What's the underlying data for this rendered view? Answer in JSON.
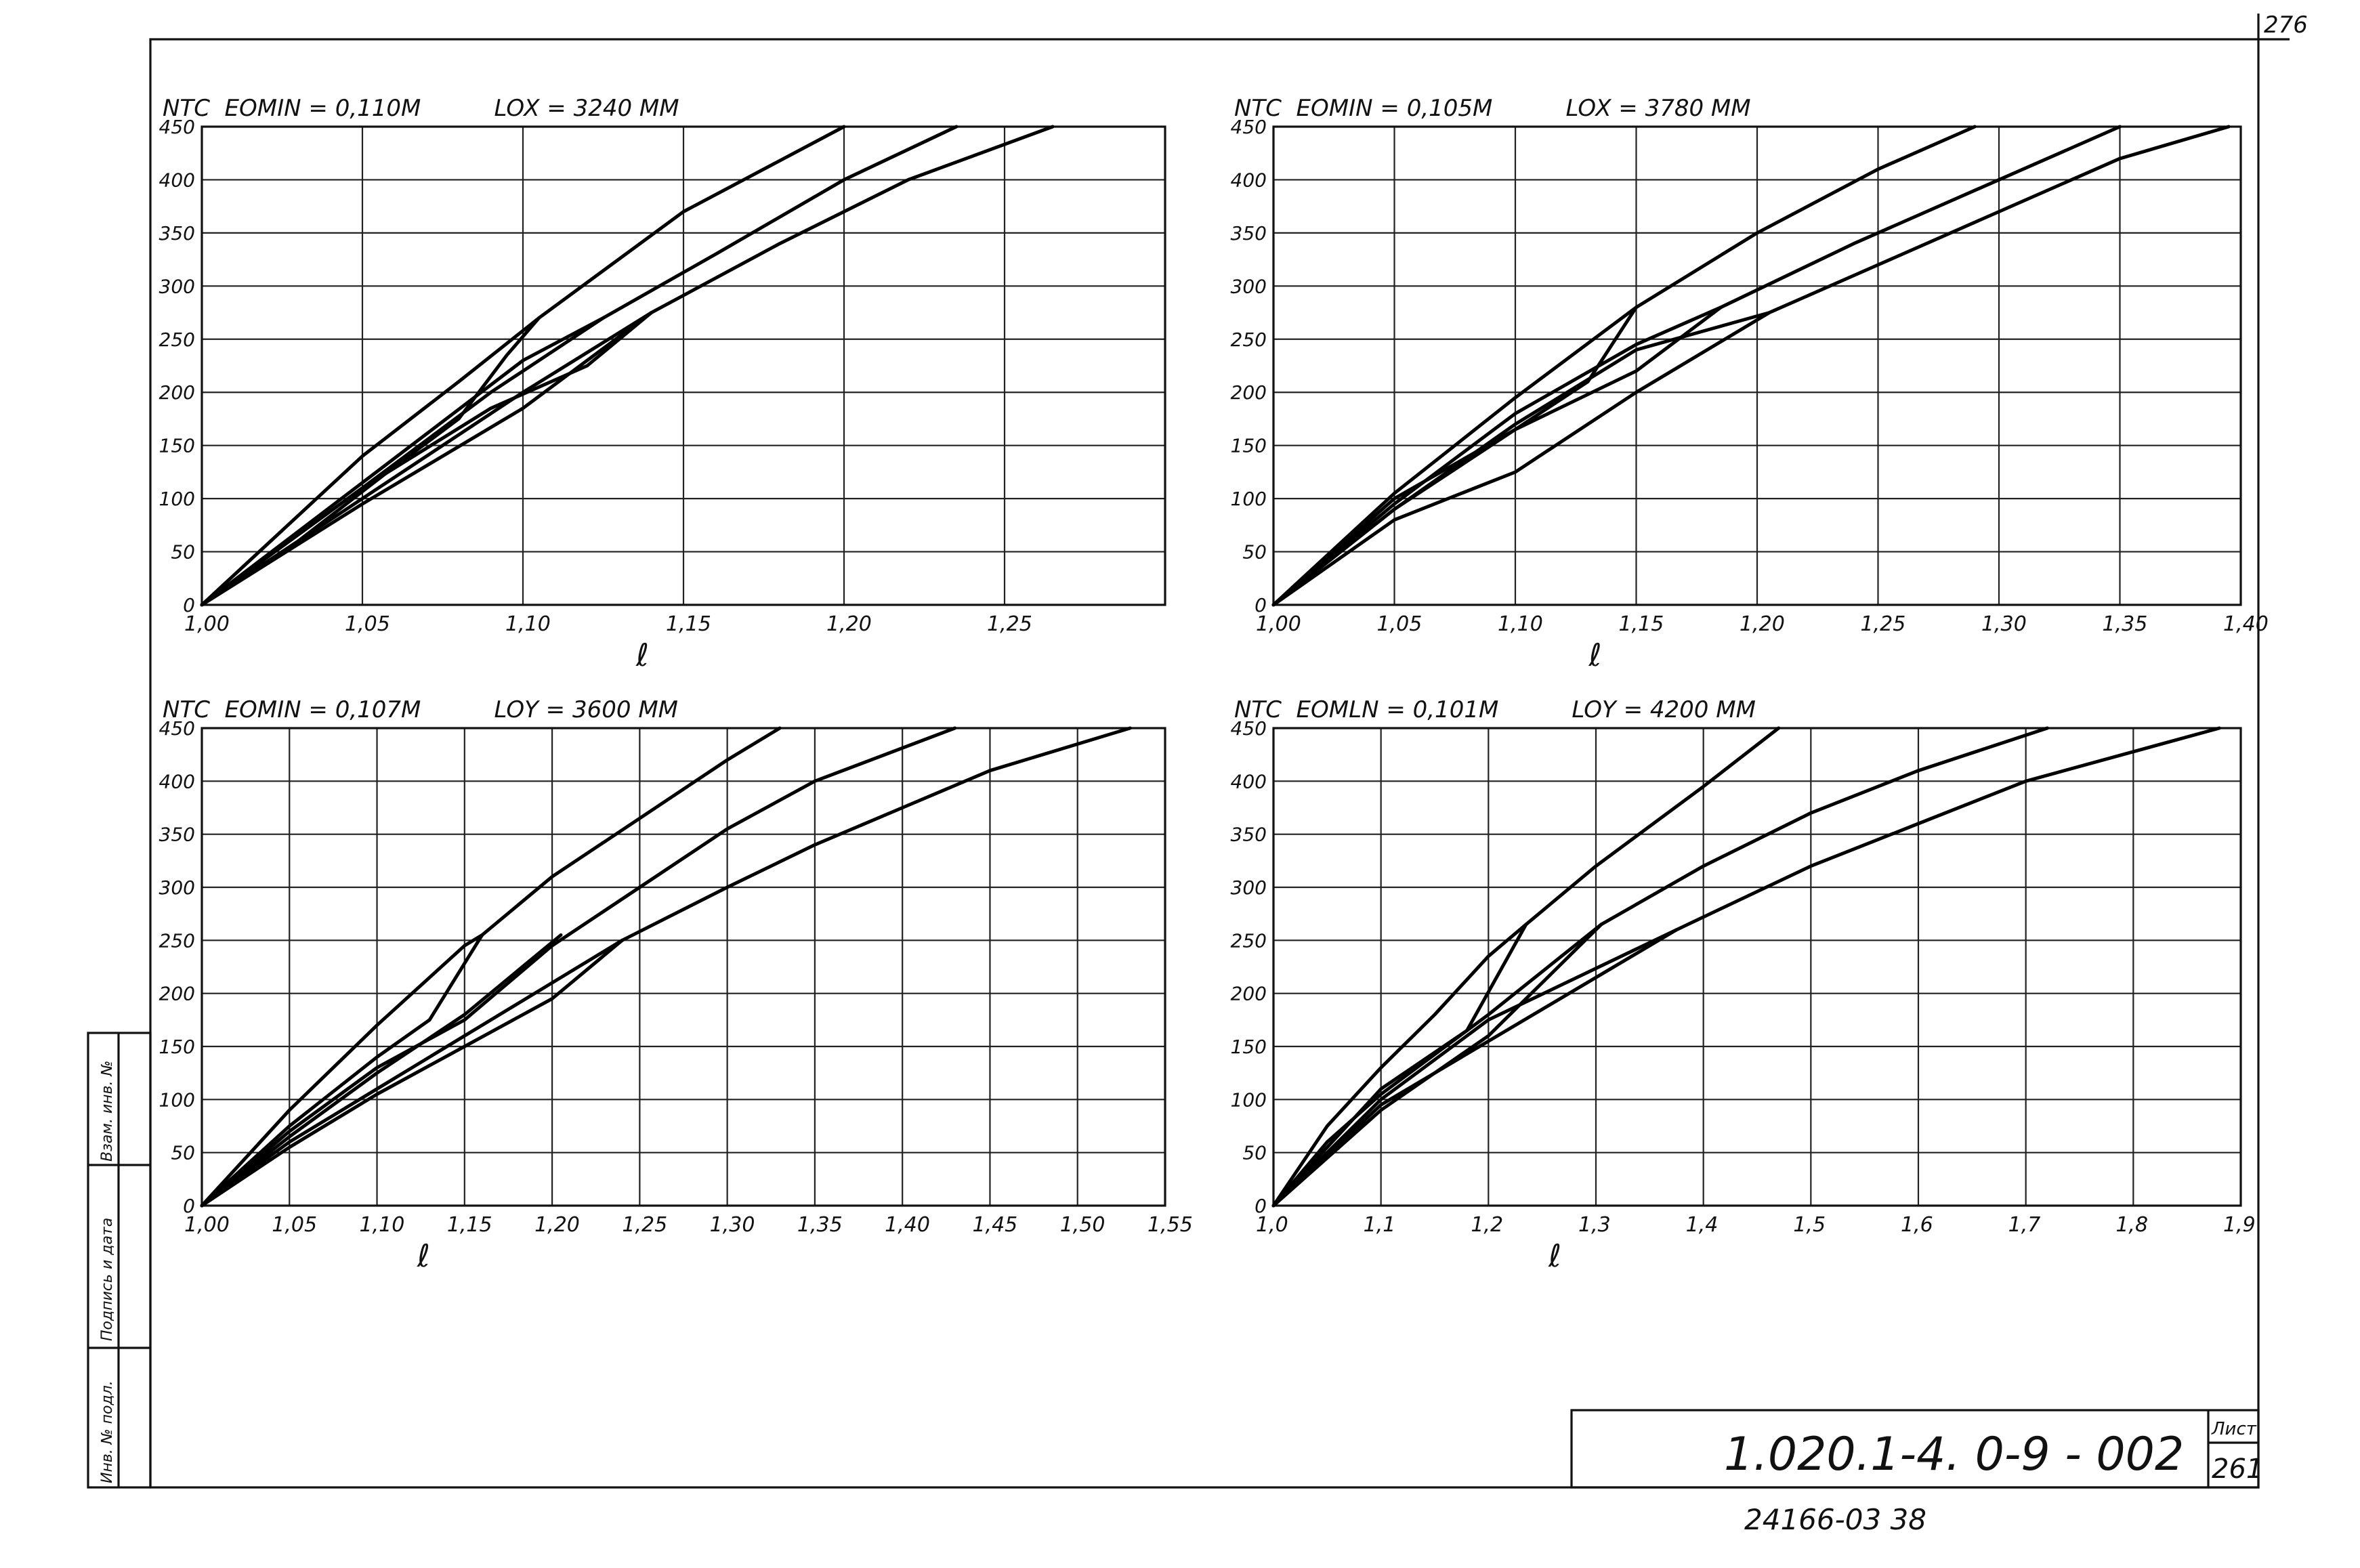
{
  "sheet": {
    "corner_number": "276",
    "designation": "1.020.1-4. 0-9 - 002",
    "sheet_label": "Лист",
    "sheet_number": "261",
    "bottom_code": "24166-03  38",
    "side_labels": [
      "Взам. инв. №",
      "Подпись и дата",
      "Инв. № подл."
    ]
  },
  "chart_data": [
    {
      "type": "line",
      "title": "NTC  EOMIN = 0,110M          LOX = 3240 MM",
      "ylabel": "NTC",
      "xlabel": "ℓ",
      "xlim": [
        1.0,
        1.3
      ],
      "ylim": [
        0,
        450
      ],
      "grid": true,
      "xticks": [
        1.0,
        1.05,
        1.1,
        1.15,
        1.2,
        1.25
      ],
      "xtick_labels": [
        "1,00",
        "1,05",
        "1,10",
        "1,15",
        "1,20",
        "1,25"
      ],
      "yticks": [
        0,
        50,
        100,
        150,
        200,
        250,
        300,
        350,
        400,
        450
      ],
      "ytick_labels": [
        "0",
        "50",
        "100",
        "150",
        "200",
        "250",
        "300",
        "350",
        "400",
        "450"
      ],
      "series": [
        {
          "points": [
            [
              1.0,
              0
            ],
            [
              1.05,
              140
            ],
            [
              1.08,
              210
            ],
            [
              1.105,
              270
            ],
            [
              1.15,
              370
            ],
            [
              1.2,
              450
            ]
          ]
        },
        {
          "points": [
            [
              1.0,
              0
            ],
            [
              1.05,
              110
            ],
            [
              1.09,
              200
            ],
            [
              1.125,
              270
            ],
            [
              1.16,
              330
            ],
            [
              1.2,
              400
            ],
            [
              1.235,
              450
            ]
          ]
        },
        {
          "points": [
            [
              1.0,
              0
            ],
            [
              1.05,
              100
            ],
            [
              1.1,
              200
            ],
            [
              1.14,
              275
            ],
            [
              1.18,
              340
            ],
            [
              1.22,
              400
            ],
            [
              1.265,
              450
            ]
          ]
        },
        {
          "points": [
            [
              1.0,
              0
            ],
            [
              1.05,
              95
            ],
            [
              1.1,
              185
            ],
            [
              1.14,
              275
            ]
          ]
        },
        {
          "points": [
            [
              1.0,
              0
            ],
            [
              1.05,
              115
            ],
            [
              1.1,
              230
            ],
            [
              1.125,
              270
            ]
          ]
        },
        {
          "points": [
            [
              1.03,
              60
            ],
            [
              1.06,
              130
            ],
            [
              1.08,
              175
            ],
            [
              1.095,
              235
            ],
            [
              1.105,
              270
            ]
          ]
        },
        {
          "points": [
            [
              1.0,
              0
            ],
            [
              1.05,
              110
            ],
            [
              1.09,
              185
            ],
            [
              1.12,
              225
            ],
            [
              1.14,
              275
            ]
          ]
        }
      ]
    },
    {
      "type": "line",
      "title": "NTC  EOMIN = 0,105M          LOX = 3780 MM",
      "ylabel": "NTC",
      "xlabel": "ℓ",
      "xlim": [
        1.0,
        1.4
      ],
      "ylim": [
        0,
        450
      ],
      "grid": true,
      "xticks": [
        1.0,
        1.05,
        1.1,
        1.15,
        1.2,
        1.25,
        1.3,
        1.35,
        1.4
      ],
      "xtick_labels": [
        "1,00",
        "1,05",
        "1,10",
        "1,15",
        "1,20",
        "1,25",
        "1,30",
        "1,35",
        "1,40"
      ],
      "yticks": [
        0,
        50,
        100,
        150,
        200,
        250,
        300,
        350,
        400,
        450
      ],
      "ytick_labels": [
        "0",
        "50",
        "100",
        "150",
        "200",
        "250",
        "300",
        "350",
        "400",
        "450"
      ],
      "series": [
        {
          "points": [
            [
              1.0,
              0
            ],
            [
              1.05,
              105
            ],
            [
              1.1,
              195
            ],
            [
              1.15,
              280
            ],
            [
              1.2,
              350
            ],
            [
              1.25,
              410
            ],
            [
              1.29,
              450
            ]
          ]
        },
        {
          "points": [
            [
              1.0,
              0
            ],
            [
              1.05,
              90
            ],
            [
              1.1,
              165
            ],
            [
              1.15,
              220
            ],
            [
              1.185,
              280
            ],
            [
              1.24,
              340
            ],
            [
              1.3,
              400
            ],
            [
              1.35,
              450
            ]
          ]
        },
        {
          "points": [
            [
              1.0,
              0
            ],
            [
              1.05,
              80
            ],
            [
              1.1,
              125
            ],
            [
              1.15,
              200
            ],
            [
              1.205,
              275
            ],
            [
              1.25,
              320
            ],
            [
              1.3,
              370
            ],
            [
              1.35,
              420
            ],
            [
              1.395,
              450
            ]
          ]
        },
        {
          "points": [
            [
              1.0,
              0
            ],
            [
              1.05,
              90
            ],
            [
              1.1,
              170
            ],
            [
              1.15,
              240
            ],
            [
              1.205,
              275
            ]
          ]
        },
        {
          "points": [
            [
              1.0,
              0
            ],
            [
              1.05,
              95
            ],
            [
              1.1,
              180
            ],
            [
              1.15,
              245
            ],
            [
              1.185,
              280
            ]
          ]
        },
        {
          "points": [
            [
              1.0,
              0
            ],
            [
              1.05,
              100
            ],
            [
              1.1,
              165
            ],
            [
              1.13,
              210
            ],
            [
              1.15,
              280
            ]
          ]
        }
      ]
    },
    {
      "type": "line",
      "title": "NTC  EOMIN = 0,107M          LOY = 3600 MM",
      "ylabel": "NTC",
      "xlabel": "ℓ",
      "xlim": [
        1.0,
        1.55
      ],
      "ylim": [
        0,
        450
      ],
      "grid": true,
      "xticks": [
        1.0,
        1.05,
        1.1,
        1.15,
        1.2,
        1.25,
        1.3,
        1.35,
        1.4,
        1.45,
        1.5,
        1.55
      ],
      "xtick_labels": [
        "1,00",
        "1,05",
        "1,10",
        "1,15",
        "1,20",
        "1,25",
        "1,30",
        "1,35",
        "1,40",
        "1,45",
        "1,50",
        "1,55"
      ],
      "yticks": [
        0,
        50,
        100,
        150,
        200,
        250,
        300,
        350,
        400,
        450
      ],
      "ytick_labels": [
        "0",
        "50",
        "100",
        "150",
        "200",
        "250",
        "300",
        "350",
        "400",
        "450"
      ],
      "series": [
        {
          "points": [
            [
              1.0,
              0
            ],
            [
              1.05,
              90
            ],
            [
              1.1,
              170
            ],
            [
              1.15,
              245
            ],
            [
              1.16,
              255
            ],
            [
              1.2,
              310
            ],
            [
              1.25,
              365
            ],
            [
              1.3,
              420
            ],
            [
              1.33,
              450
            ]
          ]
        },
        {
          "points": [
            [
              1.0,
              0
            ],
            [
              1.05,
              70
            ],
            [
              1.1,
              130
            ],
            [
              1.15,
              175
            ],
            [
              1.2,
              245
            ],
            [
              1.25,
              300
            ],
            [
              1.3,
              355
            ],
            [
              1.35,
              400
            ],
            [
              1.43,
              450
            ]
          ]
        },
        {
          "points": [
            [
              1.0,
              0
            ],
            [
              1.05,
              60
            ],
            [
              1.1,
              110
            ],
            [
              1.15,
              160
            ],
            [
              1.2,
              210
            ],
            [
              1.24,
              250
            ],
            [
              1.3,
              300
            ],
            [
              1.35,
              340
            ],
            [
              1.4,
              375
            ],
            [
              1.45,
              410
            ],
            [
              1.53,
              450
            ]
          ]
        },
        {
          "points": [
            [
              1.0,
              0
            ],
            [
              1.05,
              65
            ],
            [
              1.1,
              125
            ],
            [
              1.15,
              180
            ],
            [
              1.205,
              255
            ]
          ]
        },
        {
          "points": [
            [
              1.0,
              0
            ],
            [
              1.05,
              55
            ],
            [
              1.1,
              105
            ],
            [
              1.15,
              150
            ],
            [
              1.2,
              195
            ],
            [
              1.24,
              250
            ]
          ]
        },
        {
          "points": [
            [
              1.0,
              0
            ],
            [
              1.05,
              75
            ],
            [
              1.1,
              140
            ],
            [
              1.13,
              175
            ],
            [
              1.16,
              255
            ]
          ]
        }
      ]
    },
    {
      "type": "line",
      "title": "NTC  EOMLN = 0,101M          LOY = 4200 MM",
      "ylabel": "NTC",
      "xlabel": "ℓ",
      "xlim": [
        1.0,
        1.9
      ],
      "ylim": [
        0,
        450
      ],
      "grid": true,
      "xticks": [
        1.0,
        1.1,
        1.2,
        1.3,
        1.4,
        1.5,
        1.6,
        1.7,
        1.8,
        1.9
      ],
      "xtick_labels": [
        "1,0",
        "1,1",
        "1,2",
        "1,3",
        "1,4",
        "1,5",
        "1,6",
        "1,7",
        "1,8",
        "1,9"
      ],
      "yticks": [
        0,
        50,
        100,
        150,
        200,
        250,
        300,
        350,
        400,
        450
      ],
      "ytick_labels": [
        "0",
        "50",
        "100",
        "150",
        "200",
        "250",
        "300",
        "350",
        "400",
        "450"
      ],
      "series": [
        {
          "points": [
            [
              1.0,
              0
            ],
            [
              1.05,
              75
            ],
            [
              1.1,
              130
            ],
            [
              1.15,
              180
            ],
            [
              1.2,
              235
            ],
            [
              1.235,
              265
            ],
            [
              1.3,
              320
            ],
            [
              1.4,
              395
            ],
            [
              1.47,
              450
            ]
          ]
        },
        {
          "points": [
            [
              1.0,
              0
            ],
            [
              1.05,
              60
            ],
            [
              1.1,
              105
            ],
            [
              1.2,
              180
            ],
            [
              1.305,
              265
            ],
            [
              1.4,
              320
            ],
            [
              1.5,
              370
            ],
            [
              1.6,
              410
            ],
            [
              1.72,
              450
            ]
          ]
        },
        {
          "points": [
            [
              1.0,
              0
            ],
            [
              1.1,
              95
            ],
            [
              1.2,
              155
            ],
            [
              1.3,
              215
            ],
            [
              1.375,
              260
            ],
            [
              1.5,
              320
            ],
            [
              1.6,
              360
            ],
            [
              1.7,
              400
            ],
            [
              1.88,
              450
            ]
          ]
        },
        {
          "points": [
            [
              1.0,
              0
            ],
            [
              1.1,
              100
            ],
            [
              1.2,
              175
            ],
            [
              1.375,
              260
            ]
          ]
        },
        {
          "points": [
            [
              1.0,
              0
            ],
            [
              1.1,
              90
            ],
            [
              1.2,
              160
            ],
            [
              1.305,
              265
            ]
          ]
        },
        {
          "points": [
            [
              1.0,
              0
            ],
            [
              1.1,
              110
            ],
            [
              1.18,
              165
            ],
            [
              1.235,
              265
            ]
          ]
        }
      ]
    }
  ]
}
